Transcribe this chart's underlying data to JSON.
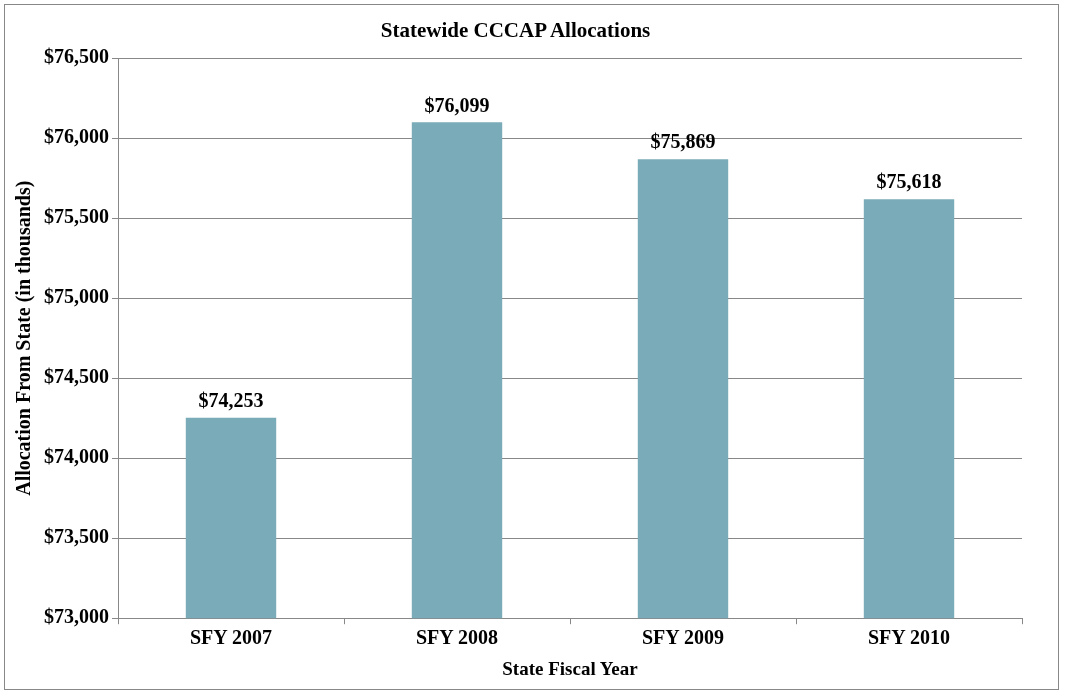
{
  "chart_data": {
    "type": "bar",
    "title": "Statewide CCCAP Allocations",
    "xlabel": "State Fiscal Year",
    "ylabel": "Allocation From State (in thousands)",
    "categories": [
      "SFY 2007",
      "SFY 2008",
      "SFY 2009",
      "SFY 2010"
    ],
    "values": [
      74253,
      76099,
      75869,
      75618
    ],
    "value_labels": [
      "$74,253",
      "$76,099",
      "$75,869",
      "$75,618"
    ],
    "color": "#7aabb8",
    "ylim": [
      73000,
      76500
    ],
    "yticks": [
      {
        "value": 73000,
        "label": "$73,000"
      },
      {
        "value": 73500,
        "label": "$73,500"
      },
      {
        "value": 74000,
        "label": "$74,000"
      },
      {
        "value": 74500,
        "label": "$74,500"
      },
      {
        "value": 75000,
        "label": "$75,000"
      },
      {
        "value": 75500,
        "label": "$75,500"
      },
      {
        "value": 76000,
        "label": "$76,000"
      },
      {
        "value": 76500,
        "label": "$76,500"
      }
    ],
    "grid": "y",
    "legend": false
  }
}
